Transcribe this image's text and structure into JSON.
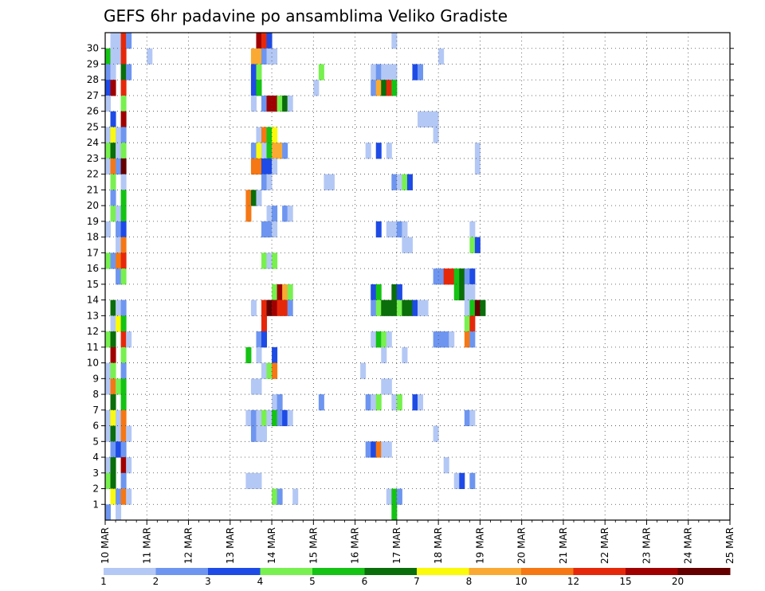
{
  "chart_data": {
    "type": "heatmap",
    "title": "GEFS 6hr padavine po ansamblima Veliko Gradiste",
    "xlabel": "",
    "ylabel": "",
    "x_ticks": [
      "10 MAR",
      "11 MAR",
      "12 MAR",
      "13 MAR",
      "14 MAR",
      "15 MAR",
      "16 MAR",
      "17 MAR",
      "18 MAR",
      "19 MAR",
      "20 MAR",
      "21 MAR",
      "22 MAR",
      "23 MAR",
      "24 MAR",
      "25 MAR"
    ],
    "y_ticks": [
      "1",
      "2",
      "3",
      "4",
      "5",
      "6",
      "7",
      "8",
      "9",
      "10",
      "11",
      "12",
      "13",
      "14",
      "15",
      "16",
      "17",
      "18",
      "19",
      "20",
      "21",
      "22",
      "23",
      "24",
      "25",
      "26",
      "27",
      "28",
      "29",
      "30"
    ],
    "x_range": [
      "10 MAR 00z",
      "25 MAR 00z"
    ],
    "time_step_hours": 6,
    "grid": true,
    "legend_position": "bottom",
    "colorbar": {
      "levels": [
        "1",
        "2",
        "3",
        "4",
        "5",
        "6",
        "7",
        "8",
        "10",
        "12",
        "15",
        "20"
      ],
      "colors": [
        "#b4c8f5",
        "#6e96f0",
        "#1e4be6",
        "#78f050",
        "#14c314",
        "#0a6e0a",
        "#fafa0a",
        "#faaa32",
        "#f57814",
        "#e6280a",
        "#a00000",
        "#640000"
      ]
    },
    "cells": [
      [
        30,
        2,
        1
      ],
      [
        30,
        3,
        1
      ],
      [
        30,
        4,
        10
      ],
      [
        30,
        5,
        2
      ],
      [
        30,
        30,
        11
      ],
      [
        30,
        31,
        10
      ],
      [
        30,
        32,
        3
      ],
      [
        30,
        56,
        1
      ],
      [
        29,
        1,
        5
      ],
      [
        29,
        2,
        1
      ],
      [
        29,
        3,
        1
      ],
      [
        29,
        4,
        10
      ],
      [
        29,
        9,
        1
      ],
      [
        29,
        29,
        8
      ],
      [
        29,
        30,
        8
      ],
      [
        29,
        31,
        2
      ],
      [
        29,
        32,
        1
      ],
      [
        29,
        33,
        1
      ],
      [
        29,
        65,
        1
      ],
      [
        28,
        1,
        2
      ],
      [
        28,
        2,
        1
      ],
      [
        28,
        4,
        6
      ],
      [
        28,
        5,
        2
      ],
      [
        28,
        29,
        3
      ],
      [
        28,
        30,
        4
      ],
      [
        28,
        42,
        4
      ],
      [
        28,
        52,
        1
      ],
      [
        28,
        53,
        2
      ],
      [
        28,
        54,
        1
      ],
      [
        28,
        55,
        1
      ],
      [
        28,
        56,
        1
      ],
      [
        28,
        60,
        3
      ],
      [
        28,
        61,
        2
      ],
      [
        27,
        1,
        3
      ],
      [
        27,
        2,
        11
      ],
      [
        27,
        4,
        10
      ],
      [
        27,
        29,
        3
      ],
      [
        27,
        30,
        5
      ],
      [
        27,
        41,
        1
      ],
      [
        27,
        52,
        2
      ],
      [
        27,
        53,
        8
      ],
      [
        27,
        54,
        6
      ],
      [
        27,
        55,
        10
      ],
      [
        27,
        56,
        5
      ],
      [
        26,
        1,
        1
      ],
      [
        26,
        4,
        4
      ],
      [
        26,
        29,
        1
      ],
      [
        26,
        31,
        2
      ],
      [
        26,
        32,
        11
      ],
      [
        26,
        33,
        11
      ],
      [
        26,
        34,
        4
      ],
      [
        26,
        35,
        6
      ],
      [
        26,
        36,
        1
      ],
      [
        25,
        2,
        3
      ],
      [
        25,
        4,
        11
      ],
      [
        25,
        61,
        1
      ],
      [
        25,
        62,
        1
      ],
      [
        25,
        63,
        1
      ],
      [
        25,
        64,
        1
      ],
      [
        24,
        1,
        1
      ],
      [
        24,
        2,
        7
      ],
      [
        24,
        3,
        1
      ],
      [
        24,
        4,
        2
      ],
      [
        24,
        30,
        1
      ],
      [
        24,
        31,
        9
      ],
      [
        24,
        32,
        5
      ],
      [
        24,
        33,
        7
      ],
      [
        24,
        64,
        1
      ],
      [
        23,
        1,
        4
      ],
      [
        23,
        2,
        6
      ],
      [
        23,
        3,
        1
      ],
      [
        23,
        4,
        4
      ],
      [
        23,
        29,
        2
      ],
      [
        23,
        30,
        7
      ],
      [
        23,
        31,
        1
      ],
      [
        23,
        32,
        5
      ],
      [
        23,
        33,
        8
      ],
      [
        23,
        34,
        8
      ],
      [
        23,
        35,
        2
      ],
      [
        23,
        51,
        1
      ],
      [
        23,
        53,
        3
      ],
      [
        23,
        55,
        1
      ],
      [
        23,
        72,
        1
      ],
      [
        22,
        1,
        1
      ],
      [
        22,
        2,
        9
      ],
      [
        22,
        3,
        2
      ],
      [
        22,
        4,
        12
      ],
      [
        22,
        29,
        9
      ],
      [
        22,
        30,
        9
      ],
      [
        22,
        31,
        3
      ],
      [
        22,
        32,
        3
      ],
      [
        22,
        33,
        1
      ],
      [
        22,
        72,
        1
      ],
      [
        21,
        2,
        4
      ],
      [
        21,
        4,
        1
      ],
      [
        21,
        31,
        2
      ],
      [
        21,
        32,
        1
      ],
      [
        21,
        43,
        1
      ],
      [
        21,
        44,
        1
      ],
      [
        21,
        56,
        2
      ],
      [
        21,
        57,
        1
      ],
      [
        21,
        58,
        4
      ],
      [
        21,
        59,
        3
      ],
      [
        20,
        2,
        2
      ],
      [
        20,
        4,
        5
      ],
      [
        20,
        28,
        9
      ],
      [
        20,
        29,
        6
      ],
      [
        20,
        30,
        1
      ],
      [
        19,
        2,
        4
      ],
      [
        19,
        3,
        1
      ],
      [
        19,
        4,
        5
      ],
      [
        19,
        28,
        9
      ],
      [
        19,
        32,
        1
      ],
      [
        19,
        33,
        2
      ],
      [
        19,
        35,
        2
      ],
      [
        19,
        36,
        1
      ],
      [
        18,
        1,
        1
      ],
      [
        18,
        3,
        2
      ],
      [
        18,
        4,
        3
      ],
      [
        18,
        31,
        2
      ],
      [
        18,
        32,
        2
      ],
      [
        18,
        33,
        1
      ],
      [
        18,
        53,
        3
      ],
      [
        18,
        55,
        1
      ],
      [
        18,
        56,
        1
      ],
      [
        18,
        57,
        2
      ],
      [
        18,
        58,
        1
      ],
      [
        18,
        71,
        1
      ],
      [
        17,
        3,
        1
      ],
      [
        17,
        4,
        9
      ],
      [
        17,
        58,
        1
      ],
      [
        17,
        59,
        1
      ],
      [
        17,
        71,
        4
      ],
      [
        17,
        72,
        3
      ],
      [
        16,
        1,
        4
      ],
      [
        16,
        2,
        2
      ],
      [
        16,
        3,
        9
      ],
      [
        16,
        4,
        10
      ],
      [
        16,
        31,
        4
      ],
      [
        16,
        32,
        1
      ],
      [
        16,
        33,
        4
      ],
      [
        15,
        3,
        2
      ],
      [
        15,
        4,
        4
      ],
      [
        15,
        64,
        2
      ],
      [
        15,
        65,
        2
      ],
      [
        15,
        66,
        10
      ],
      [
        15,
        67,
        10
      ],
      [
        15,
        68,
        5
      ],
      [
        15,
        69,
        6
      ],
      [
        15,
        70,
        2
      ],
      [
        15,
        71,
        3
      ],
      [
        14,
        33,
        4
      ],
      [
        14,
        34,
        11
      ],
      [
        14,
        35,
        8
      ],
      [
        14,
        36,
        4
      ],
      [
        14,
        52,
        3
      ],
      [
        14,
        53,
        5
      ],
      [
        14,
        56,
        6
      ],
      [
        14,
        57,
        3
      ],
      [
        14,
        68,
        5
      ],
      [
        14,
        69,
        6
      ],
      [
        14,
        70,
        1
      ],
      [
        14,
        71,
        1
      ],
      [
        13,
        2,
        6
      ],
      [
        13,
        3,
        1
      ],
      [
        13,
        4,
        2
      ],
      [
        13,
        29,
        1
      ],
      [
        13,
        31,
        10
      ],
      [
        13,
        32,
        12
      ],
      [
        13,
        33,
        11
      ],
      [
        13,
        34,
        10
      ],
      [
        13,
        35,
        10
      ],
      [
        13,
        36,
        2
      ],
      [
        13,
        52,
        2
      ],
      [
        13,
        53,
        4
      ],
      [
        13,
        54,
        6
      ],
      [
        13,
        55,
        6
      ],
      [
        13,
        56,
        6
      ],
      [
        13,
        57,
        4
      ],
      [
        13,
        58,
        6
      ],
      [
        13,
        59,
        6
      ],
      [
        13,
        60,
        3
      ],
      [
        13,
        61,
        1
      ],
      [
        13,
        62,
        1
      ],
      [
        13,
        70,
        1
      ],
      [
        13,
        71,
        5
      ],
      [
        13,
        72,
        12
      ],
      [
        13,
        73,
        6
      ],
      [
        12,
        2,
        1
      ],
      [
        12,
        3,
        7
      ],
      [
        12,
        4,
        5
      ],
      [
        12,
        31,
        10
      ],
      [
        12,
        70,
        4
      ],
      [
        12,
        71,
        10
      ],
      [
        11,
        1,
        4
      ],
      [
        11,
        2,
        6
      ],
      [
        11,
        4,
        10
      ],
      [
        11,
        5,
        1
      ],
      [
        11,
        30,
        2
      ],
      [
        11,
        31,
        3
      ],
      [
        11,
        52,
        1
      ],
      [
        11,
        53,
        5
      ],
      [
        11,
        54,
        4
      ],
      [
        11,
        55,
        1
      ],
      [
        11,
        64,
        2
      ],
      [
        11,
        65,
        2
      ],
      [
        11,
        66,
        2
      ],
      [
        11,
        67,
        1
      ],
      [
        11,
        70,
        9
      ],
      [
        11,
        71,
        2
      ],
      [
        10,
        2,
        11
      ],
      [
        10,
        4,
        4
      ],
      [
        10,
        28,
        5
      ],
      [
        10,
        30,
        1
      ],
      [
        10,
        33,
        3
      ],
      [
        10,
        54,
        1
      ],
      [
        10,
        58,
        1
      ],
      [
        9,
        1,
        1
      ],
      [
        9,
        2,
        4
      ],
      [
        9,
        4,
        2
      ],
      [
        9,
        31,
        1
      ],
      [
        9,
        32,
        4
      ],
      [
        9,
        33,
        9
      ],
      [
        9,
        50,
        1
      ],
      [
        8,
        1,
        1
      ],
      [
        8,
        2,
        9
      ],
      [
        8,
        3,
        4
      ],
      [
        8,
        4,
        5
      ],
      [
        8,
        29,
        1
      ],
      [
        8,
        30,
        1
      ],
      [
        8,
        54,
        1
      ],
      [
        8,
        55,
        1
      ],
      [
        7,
        2,
        6
      ],
      [
        7,
        4,
        5
      ],
      [
        7,
        33,
        1
      ],
      [
        7,
        34,
        2
      ],
      [
        7,
        42,
        2
      ],
      [
        7,
        51,
        2
      ],
      [
        7,
        52,
        1
      ],
      [
        7,
        53,
        4
      ],
      [
        7,
        56,
        1
      ],
      [
        7,
        57,
        4
      ],
      [
        7,
        60,
        3
      ],
      [
        7,
        61,
        1
      ],
      [
        6,
        1,
        1
      ],
      [
        6,
        2,
        7
      ],
      [
        6,
        3,
        1
      ],
      [
        6,
        4,
        9
      ],
      [
        6,
        28,
        1
      ],
      [
        6,
        29,
        2
      ],
      [
        6,
        30,
        1
      ],
      [
        6,
        31,
        4
      ],
      [
        6,
        32,
        1
      ],
      [
        6,
        33,
        5
      ],
      [
        6,
        34,
        2
      ],
      [
        6,
        35,
        3
      ],
      [
        6,
        36,
        1
      ],
      [
        6,
        70,
        2
      ],
      [
        6,
        71,
        1
      ],
      [
        5,
        1,
        1
      ],
      [
        5,
        2,
        6
      ],
      [
        5,
        3,
        1
      ],
      [
        5,
        4,
        9
      ],
      [
        5,
        5,
        1
      ],
      [
        5,
        29,
        2
      ],
      [
        5,
        30,
        1
      ],
      [
        5,
        31,
        1
      ],
      [
        5,
        64,
        1
      ],
      [
        4,
        2,
        2
      ],
      [
        4,
        3,
        3
      ],
      [
        4,
        4,
        2
      ],
      [
        4,
        51,
        2
      ],
      [
        4,
        52,
        3
      ],
      [
        4,
        53,
        9
      ],
      [
        4,
        54,
        1
      ],
      [
        4,
        55,
        1
      ],
      [
        3,
        1,
        1
      ],
      [
        3,
        2,
        6
      ],
      [
        3,
        4,
        11
      ],
      [
        3,
        5,
        1
      ],
      [
        3,
        66,
        1
      ],
      [
        2,
        1,
        4
      ],
      [
        2,
        2,
        6
      ],
      [
        2,
        4,
        2
      ],
      [
        2,
        28,
        1
      ],
      [
        2,
        29,
        1
      ],
      [
        2,
        30,
        1
      ],
      [
        2,
        68,
        1
      ],
      [
        2,
        69,
        3
      ],
      [
        2,
        71,
        2
      ],
      [
        1,
        2,
        7
      ],
      [
        1,
        3,
        2
      ],
      [
        1,
        4,
        9
      ],
      [
        1,
        5,
        1
      ],
      [
        1,
        33,
        4
      ],
      [
        1,
        34,
        2
      ],
      [
        1,
        37,
        1
      ],
      [
        1,
        55,
        1
      ],
      [
        1,
        56,
        5
      ],
      [
        1,
        57,
        2
      ],
      [
        0,
        1,
        2
      ],
      [
        0,
        3,
        1
      ],
      [
        0,
        56,
        5
      ]
    ]
  }
}
